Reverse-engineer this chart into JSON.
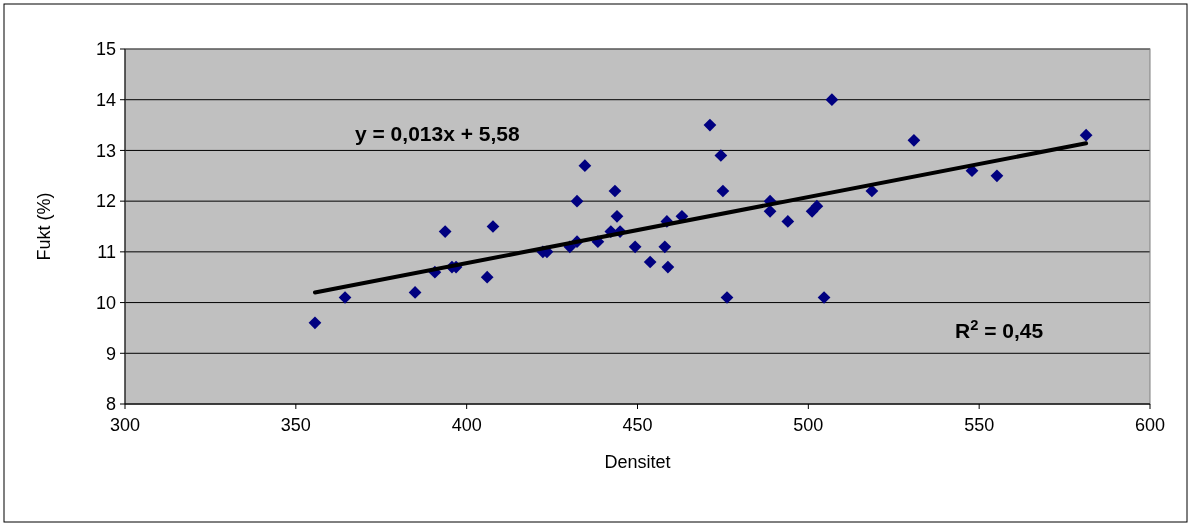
{
  "chart_data": {
    "type": "scatter",
    "xlabel": "Densitet",
    "ylabel": "Fukt (%)",
    "xlim": [
      300,
      600
    ],
    "xticks": [
      300,
      350,
      400,
      450,
      500,
      550,
      600
    ],
    "ylim": [
      8,
      15
    ],
    "yticks": [
      8,
      9,
      10,
      11,
      12,
      13,
      14,
      15
    ],
    "grid": "y",
    "marker": "diamond",
    "annotations": [
      "y = 0,013x + 5,58",
      "R$^{2}$ = 0,45"
    ],
    "series": [
      {
        "color": "#000080",
        "x": [
          355.6,
          364.4,
          384.9,
          390.7,
          395.7,
          396.9,
          393.7,
          406.0,
          407.7,
          422.3,
          423.5,
          430.2,
          432.3,
          434.6,
          432.3,
          438.4,
          442.2,
          443.4,
          444.0,
          444.9,
          449.3,
          453.7,
          458.0,
          458.9,
          458.6,
          463.0,
          471.2,
          474.4,
          475.0,
          476.2,
          488.8,
          488.8,
          494.0,
          501.1,
          502.5,
          504.6,
          506.9,
          518.6,
          530.9,
          547.9,
          555.2,
          581.3
        ],
        "values": [
          9.6,
          10.1,
          10.2,
          10.6,
          10.7,
          10.7,
          11.4,
          10.5,
          11.5,
          11.0,
          11.0,
          11.1,
          11.2,
          12.7,
          12.0,
          11.2,
          11.4,
          12.2,
          11.7,
          11.4,
          11.1,
          10.8,
          11.1,
          10.7,
          11.6,
          11.7,
          13.5,
          12.9,
          12.2,
          10.1,
          12.0,
          11.8,
          11.6,
          11.8,
          11.9,
          10.1,
          14.0,
          12.2,
          13.2,
          12.6,
          12.5,
          13.3
        ]
      },
      {
        "type": "line",
        "color": "#000000",
        "marker": "none",
        "line_style": "solid",
        "x": [
          355.6,
          581.3
        ],
        "values": [
          10.2,
          13.14
        ]
      }
    ]
  }
}
